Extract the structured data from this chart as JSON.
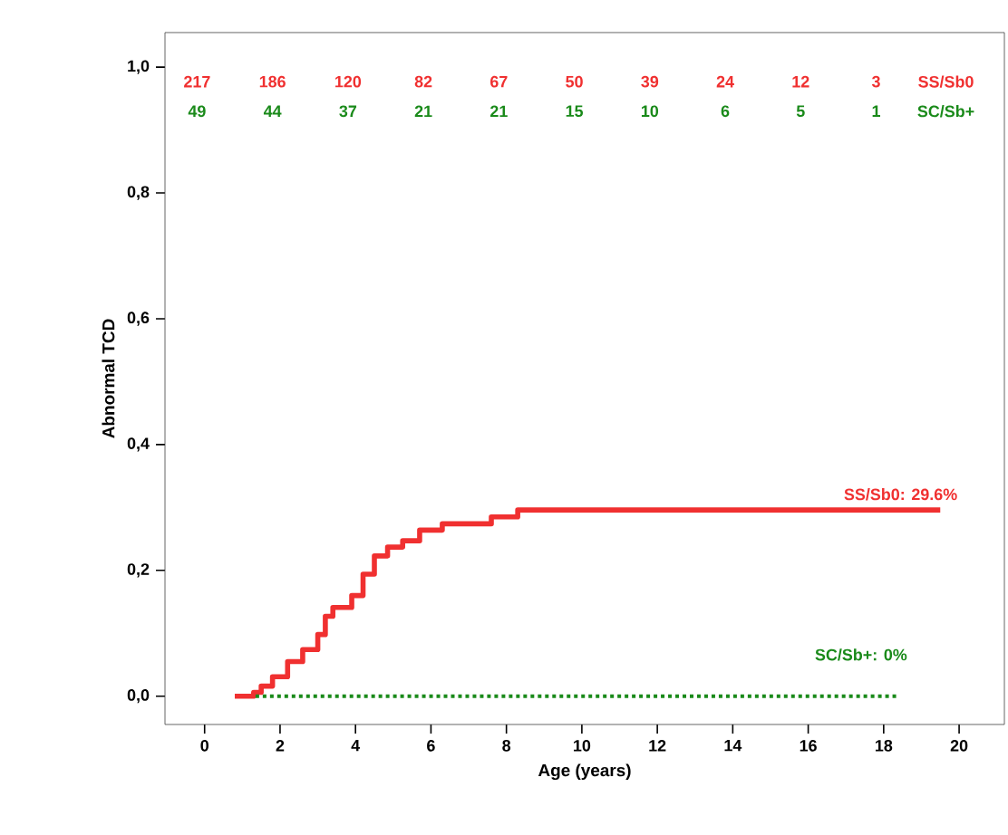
{
  "chart_data": {
    "type": "step",
    "xlabel": "Age (years)",
    "ylabel": "Abnormal TCD",
    "xlim": [
      -1.05,
      21.2
    ],
    "ylim": [
      -0.045,
      1.055
    ],
    "xticks": [
      0,
      2,
      4,
      6,
      8,
      10,
      12,
      14,
      16,
      18,
      20
    ],
    "yticks": [
      {
        "value": 0,
        "label": "0,0"
      },
      {
        "value": 0.2,
        "label": "0,2"
      },
      {
        "value": 0.4,
        "label": "0,4"
      },
      {
        "value": 0.6,
        "label": "0,6"
      },
      {
        "value": 0.8,
        "label": "0,8"
      },
      {
        "value": 1.0,
        "label": "1,0"
      }
    ],
    "series": [
      {
        "color": "#f03030",
        "line_style": "solid",
        "x": [
          0.8,
          1.3,
          1.5,
          1.8,
          2.2,
          2.6,
          3.0,
          3.2,
          3.4,
          3.9,
          4.2,
          4.5,
          4.85,
          5.25,
          5.7,
          6.3,
          7.6,
          8.3,
          19.5
        ],
        "values": [
          0,
          0.006,
          0.016,
          0.031,
          0.055,
          0.074,
          0.098,
          0.127,
          0.141,
          0.16,
          0.194,
          0.223,
          0.237,
          0.247,
          0.264,
          0.274,
          0.285,
          0.296,
          0.296
        ]
      },
      {
        "color": "#1a8a1a",
        "line_style": "dotted",
        "x": [
          1.35,
          18.4
        ],
        "values": [
          0,
          0
        ]
      }
    ],
    "annotations": [
      "217",
      "186",
      "120",
      "82",
      "67",
      "50",
      "39",
      "24",
      "12",
      "3",
      "SS/Sb0",
      "49",
      "44",
      "37",
      "21",
      "21",
      "15",
      "10",
      "6",
      "5",
      "1",
      "SC/Sb+",
      "SS/Sb0: 29.6%",
      "SC/Sb+:  0%"
    ]
  }
}
